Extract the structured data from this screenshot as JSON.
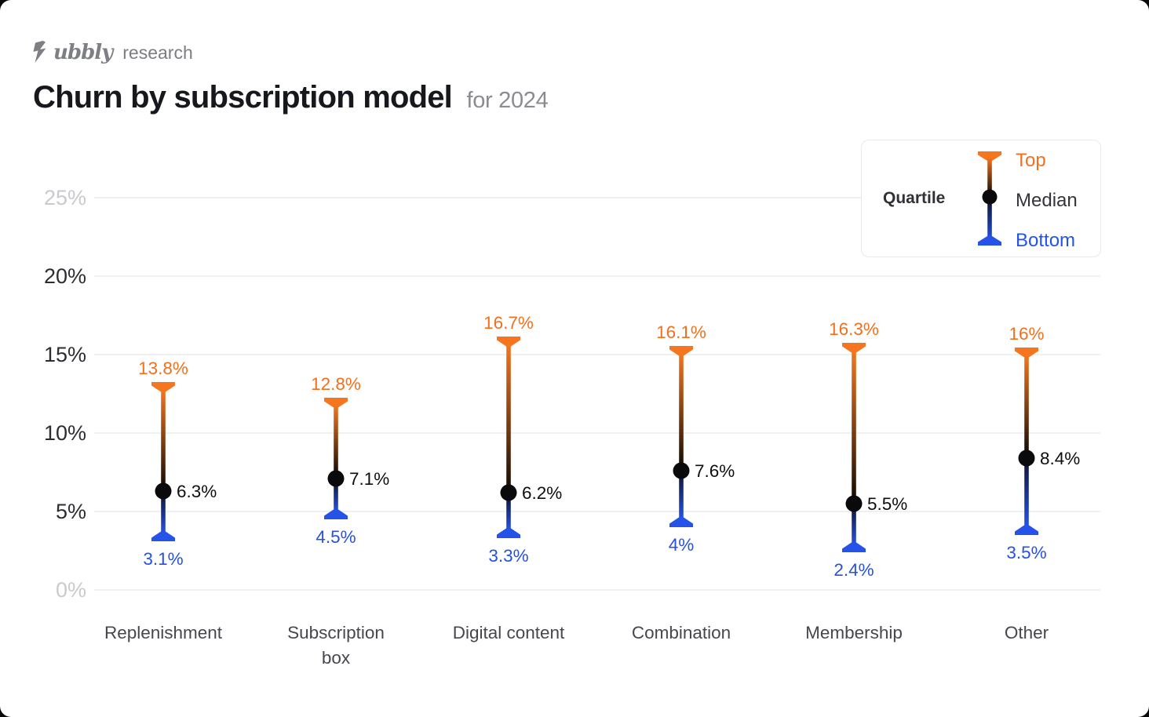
{
  "brand": {
    "name": "Subbly",
    "wordmark_tail": "ubbly",
    "suffix": "research"
  },
  "header": {
    "title": "Churn by subscription model",
    "subtitle": "for 2024"
  },
  "legend": {
    "label": "Quartile",
    "items": [
      {
        "label": "Top",
        "color": "#f2701d"
      },
      {
        "label": "Median",
        "color": "#33353a"
      },
      {
        "label": "Bottom",
        "color": "#2453e8"
      }
    ]
  },
  "colors": {
    "orange": "#f5761f",
    "orange_text": "#f2701d",
    "blue": "#2553e8",
    "blue_text": "#2451e4",
    "median_dot": "#0a0a0c",
    "median_text": "#0d0e10",
    "grid": "#e5e6e9",
    "tick": "#2b2d31",
    "tick_muted": "#c9cacd",
    "category_text": "#45474d",
    "stem_dark_upper": "#160d04",
    "stem_dark_lower": "#0f173a"
  },
  "chart_data": {
    "type": "scatter",
    "subtype": "quartile-range",
    "title": "Churn by subscription model",
    "subtitle": "for 2024",
    "xlabel": "",
    "ylabel": "",
    "ylim": [
      0,
      25
    ],
    "yticks": [
      25,
      20,
      15,
      10,
      5,
      0
    ],
    "ytick_labels": [
      "25%",
      "20%",
      "15%",
      "10%",
      "5%",
      "0%"
    ],
    "ytick_muted": [
      true,
      false,
      false,
      false,
      false,
      true
    ],
    "grid": true,
    "legend_position": "top-right",
    "categories": [
      "Replenishment",
      "Subscription box",
      "Digital content",
      "Combination",
      "Membership",
      "Other"
    ],
    "category_lines": [
      [
        "Replenishment"
      ],
      [
        "Subscription",
        "box"
      ],
      [
        "Digital content"
      ],
      [
        "Combination"
      ],
      [
        "Membership"
      ],
      [
        "Other"
      ]
    ],
    "series": [
      {
        "name": "Top",
        "values": [
          13.8,
          12.8,
          16.7,
          16.1,
          16.3,
          16.0
        ],
        "labels": [
          "13.8%",
          "12.8%",
          "16.7%",
          "16.1%",
          "16.3%",
          "16%"
        ]
      },
      {
        "name": "Median",
        "values": [
          6.3,
          7.1,
          6.2,
          7.6,
          5.5,
          8.4
        ],
        "labels": [
          "6.3%",
          "7.1%",
          "6.2%",
          "7.6%",
          "5.5%",
          "8.4%"
        ]
      },
      {
        "name": "Bottom",
        "values": [
          3.1,
          4.5,
          3.3,
          4.0,
          2.4,
          3.5
        ],
        "labels": [
          "3.1%",
          "4.5%",
          "3.3%",
          "4%",
          "2.4%",
          "3.5%"
        ]
      }
    ]
  }
}
